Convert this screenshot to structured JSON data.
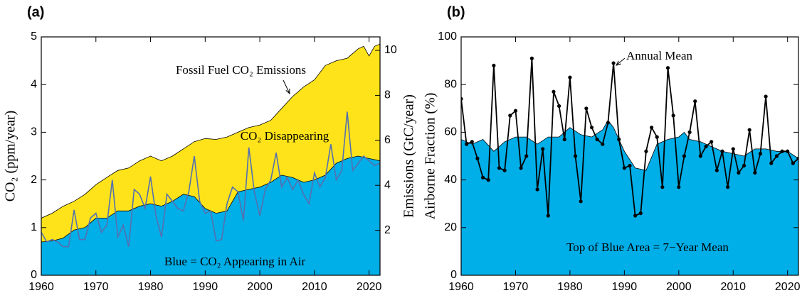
{
  "chart_data": [
    {
      "type": "area",
      "panel_label": "(a)",
      "y_label": "CO₂ (ppm/year)",
      "y2_label": "Emissions (GtC/year)",
      "xlim": [
        1960,
        2022
      ],
      "xticks": [
        1960,
        1970,
        1980,
        1990,
        2000,
        2010,
        2020
      ],
      "ylim": [
        0,
        5
      ],
      "yticks": [
        0,
        1,
        2,
        3,
        4,
        5
      ],
      "y2lim": [
        0,
        10.6
      ],
      "y2ticks": [
        2,
        4,
        6,
        8,
        10
      ],
      "annotations": [
        "Fossil Fuel CO₂ Emissions",
        "CO₂ Disappearing",
        "Blue = CO₂ Appearing in Air"
      ],
      "series": [
        {
          "kind": "area",
          "axis": "y2",
          "color": "#ffe31a",
          "x": [
            1960,
            1962,
            1964,
            1966,
            1968,
            1970,
            1972,
            1974,
            1976,
            1978,
            1980,
            1982,
            1984,
            1986,
            1988,
            1990,
            1992,
            1994,
            1996,
            1998,
            2000,
            2002,
            2004,
            2006,
            2008,
            2010,
            2012,
            2014,
            2016,
            2018,
            2019,
            2020,
            2021,
            2022
          ],
          "values": [
            2.54,
            2.76,
            3.07,
            3.29,
            3.6,
            4.03,
            4.35,
            4.66,
            4.77,
            5.09,
            5.3,
            5.09,
            5.3,
            5.62,
            5.94,
            6.08,
            6.04,
            6.15,
            6.36,
            6.57,
            6.68,
            6.89,
            7.42,
            7.95,
            8.37,
            8.69,
            9.33,
            9.54,
            9.65,
            10.07,
            10.18,
            9.75,
            10.18,
            10.28
          ]
        },
        {
          "kind": "area",
          "color": "#00aee8",
          "x": [
            1960,
            1962,
            1964,
            1966,
            1968,
            1970,
            1972,
            1974,
            1976,
            1978,
            1980,
            1982,
            1984,
            1986,
            1988,
            1990,
            1992,
            1994,
            1996,
            1998,
            2000,
            2002,
            2004,
            2006,
            2008,
            2010,
            2012,
            2014,
            2016,
            2018,
            2020,
            2022
          ],
          "values": [
            0.7,
            0.72,
            0.78,
            0.95,
            1.0,
            1.2,
            1.2,
            1.35,
            1.35,
            1.45,
            1.5,
            1.45,
            1.55,
            1.7,
            1.65,
            1.4,
            1.3,
            1.35,
            1.75,
            1.8,
            1.85,
            1.95,
            2.1,
            2.05,
            1.95,
            2.0,
            2.1,
            2.35,
            2.45,
            2.5,
            2.45,
            2.4
          ]
        },
        {
          "kind": "line",
          "color": "#5470b0",
          "markers": false,
          "x": [
            1960,
            1961,
            1962,
            1963,
            1964,
            1965,
            1966,
            1967,
            1968,
            1969,
            1970,
            1971,
            1972,
            1973,
            1974,
            1975,
            1976,
            1977,
            1978,
            1979,
            1980,
            1981,
            1982,
            1983,
            1984,
            1985,
            1986,
            1987,
            1988,
            1989,
            1990,
            1991,
            1992,
            1993,
            1994,
            1995,
            1996,
            1997,
            1998,
            1999,
            2000,
            2001,
            2002,
            2003,
            2004,
            2005,
            2006,
            2007,
            2008,
            2009,
            2010,
            2011,
            2012,
            2013,
            2014,
            2015,
            2016,
            2017,
            2018,
            2019,
            2020,
            2021,
            2022
          ],
          "values": [
            0.9,
            0.7,
            0.75,
            0.7,
            0.6,
            0.6,
            1.37,
            0.75,
            0.75,
            1.2,
            1.3,
            0.9,
            1.05,
            2.0,
            0.8,
            1.05,
            0.6,
            1.8,
            1.7,
            1.4,
            2.07,
            1.25,
            0.8,
            1.7,
            1.55,
            1.4,
            1.35,
            1.75,
            2.5,
            1.55,
            1.3,
            1.35,
            0.72,
            0.75,
            1.5,
            1.85,
            1.75,
            1.15,
            2.68,
            1.75,
            1.25,
            1.8,
            2.0,
            2.57,
            1.85,
            2.05,
            1.8,
            2.0,
            1.7,
            1.5,
            2.15,
            1.85,
            2.05,
            2.75,
            2.0,
            2.2,
            3.43,
            2.2,
            2.35,
            2.5,
            2.4,
            2.3,
            2.35
          ]
        }
      ]
    },
    {
      "type": "line",
      "panel_label": "(b)",
      "y_label": "Airborne Fraction (%)",
      "xlim": [
        1960,
        2022
      ],
      "xticks": [
        1960,
        1970,
        1980,
        1990,
        2000,
        2010,
        2020
      ],
      "ylim": [
        0,
        100
      ],
      "yticks": [
        0,
        20,
        40,
        60,
        80,
        100
      ],
      "annotations": [
        "Annual Mean",
        "Top of Blue Area = 7−Year Mean"
      ],
      "series": [
        {
          "kind": "area",
          "color": "#00aee8",
          "x": [
            1960,
            1962,
            1964,
            1966,
            1968,
            1970,
            1972,
            1974,
            1976,
            1978,
            1980,
            1982,
            1984,
            1986,
            1987,
            1988,
            1990,
            1992,
            1994,
            1996,
            1998,
            2000,
            2001,
            2002,
            2004,
            2006,
            2008,
            2010,
            2012,
            2014,
            2016,
            2018,
            2020,
            2022
          ],
          "values": [
            57,
            55,
            57,
            52,
            56,
            58,
            58,
            55,
            58,
            58,
            62,
            59,
            58,
            61,
            65,
            62,
            52,
            45,
            44,
            55,
            57,
            58,
            60,
            57,
            56,
            54,
            52,
            51,
            50,
            53,
            53,
            52,
            52,
            49
          ]
        },
        {
          "kind": "line",
          "color": "#000000",
          "markers": true,
          "x": [
            1960,
            1961,
            1962,
            1963,
            1964,
            1965,
            1966,
            1967,
            1968,
            1969,
            1970,
            1971,
            1972,
            1973,
            1974,
            1975,
            1976,
            1977,
            1978,
            1979,
            1980,
            1981,
            1982,
            1983,
            1984,
            1985,
            1986,
            1987,
            1988,
            1989,
            1990,
            1991,
            1992,
            1993,
            1994,
            1995,
            1996,
            1997,
            1998,
            1999,
            2000,
            2001,
            2002,
            2003,
            2004,
            2005,
            2006,
            2007,
            2008,
            2009,
            2010,
            2011,
            2012,
            2013,
            2014,
            2015,
            2016,
            2017,
            2018,
            2019,
            2020,
            2021,
            2022
          ],
          "values": [
            74,
            55,
            56,
            49,
            41,
            40,
            88,
            45,
            44,
            67,
            69,
            45,
            50,
            91,
            36,
            53,
            25,
            77,
            71,
            57,
            83,
            50,
            31,
            70,
            62,
            57,
            55,
            64,
            89,
            57,
            45,
            46,
            25,
            26,
            52,
            62,
            58,
            37,
            87,
            67,
            37,
            50,
            60,
            73,
            50,
            54,
            56,
            44,
            52,
            37,
            53,
            43,
            46,
            61,
            43,
            51,
            75,
            47,
            50,
            52,
            52,
            47,
            49
          ]
        }
      ]
    }
  ]
}
